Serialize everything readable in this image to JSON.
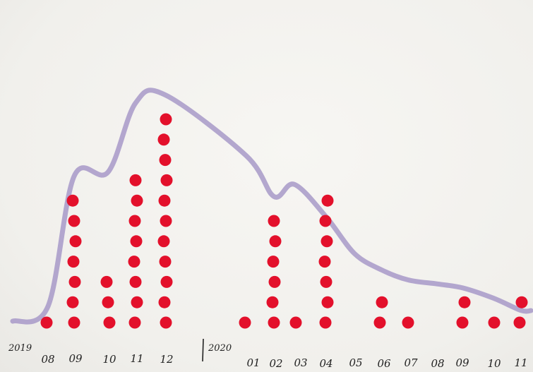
{
  "chart_data": {
    "type": "scatter",
    "subtype": "hand-drawn dot/tally chart with smoothed trend curve",
    "years": [
      {
        "label": "2019"
      },
      {
        "label": "2020"
      }
    ],
    "categories": [
      "08",
      "09",
      "10",
      "11",
      "12",
      "01",
      "02",
      "03",
      "04",
      "05",
      "06",
      "07",
      "08",
      "09",
      "10",
      "11"
    ],
    "category_labels": [
      "08",
      "09",
      "10",
      "11",
      "12",
      "01",
      "02",
      "03",
      "04",
      "05",
      "06",
      "07",
      "08",
      "09",
      "10",
      "11"
    ],
    "series": [
      {
        "values": [
          1,
          7,
          3,
          8,
          11,
          1,
          6,
          1,
          7,
          0,
          2,
          1,
          0,
          2,
          1,
          2
        ]
      }
    ],
    "trend_curve": {
      "values": [
        0.8,
        7.2,
        7.4,
        10.8,
        11.2,
        8.2,
        6.2,
        6.8,
        5.2,
        3.4,
        2.6,
        2.1,
        1.9,
        1.7,
        1.2,
        0.6
      ]
    },
    "ylim": [
      0,
      12
    ],
    "grid": false,
    "legend": "none",
    "colors": {
      "dots": "#e3102b",
      "curve": "#a799c8",
      "axis_ink": "#222222",
      "paper": "#f3f2ef"
    }
  }
}
